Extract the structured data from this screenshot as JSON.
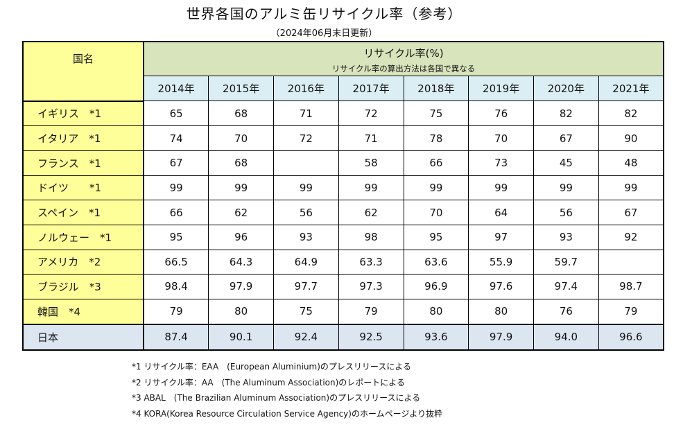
{
  "title": "世界各国のアルミ缶リサイクル率（参考）",
  "subtitle": "（2024年06月末日更新）",
  "table": {
    "country_header": "国名",
    "rate_header": "リサイクル率(%)",
    "rate_note": "リサイクル率の算出方法は各国で異なる",
    "years": [
      "2014年",
      "2015年",
      "2016年",
      "2017年",
      "2018年",
      "2019年",
      "2020年",
      "2021年"
    ],
    "rows": [
      {
        "country": "イギリス　*1",
        "values": [
          "65",
          "68",
          "71",
          "72",
          "75",
          "76",
          "82",
          "82"
        ]
      },
      {
        "country": "イタリア　*1",
        "values": [
          "74",
          "70",
          "72",
          "71",
          "78",
          "70",
          "67",
          "90"
        ]
      },
      {
        "country": "フランス　*1",
        "values": [
          "67",
          "68",
          "",
          "58",
          "66",
          "73",
          "45",
          "48"
        ]
      },
      {
        "country": "ドイツ　　*1",
        "values": [
          "99",
          "99",
          "99",
          "99",
          "99",
          "99",
          "99",
          "99"
        ]
      },
      {
        "country": "スペイン　*1",
        "values": [
          "66",
          "62",
          "56",
          "62",
          "70",
          "64",
          "56",
          "67"
        ]
      },
      {
        "country": "ノルウェー　*1",
        "values": [
          "95",
          "96",
          "93",
          "98",
          "95",
          "97",
          "93",
          "92"
        ]
      },
      {
        "country": "アメリカ　*2",
        "values": [
          "66.5",
          "64.3",
          "64.9",
          "63.3",
          "63.6",
          "55.9",
          "59.7",
          ""
        ]
      },
      {
        "country": "ブラジル　*3",
        "values": [
          "98.4",
          "97.9",
          "97.7",
          "97.3",
          "96.9",
          "97.6",
          "97.4",
          "98.7"
        ]
      },
      {
        "country": "韓国　*4",
        "values": [
          "79",
          "80",
          "75",
          "79",
          "80",
          "80",
          "76",
          "79"
        ]
      },
      {
        "country": "日本",
        "values": [
          "87.4",
          "90.1",
          "92.4",
          "92.5",
          "93.6",
          "97.9",
          "94.0",
          "96.6"
        ]
      }
    ]
  },
  "notes": [
    "*1 リサイクル率：EAA　(European Aluminium)のプレスリリースによる",
    "*2 リサイクル率：AA　(The Aluminum Association)のレポートによる",
    "*3 ABAL　(The Brazilian Aluminum Association)のプレスリリースによる",
    "*4 KORA(Korea Resource Circulation Service Agency)のホームページより抜粋"
  ],
  "colors": {
    "country_bg": "#ffff99",
    "rate_header_bg": "#d8e4bc",
    "year_header_bg": "#dbeef4",
    "japan_row_bg": "#dce6f1"
  }
}
